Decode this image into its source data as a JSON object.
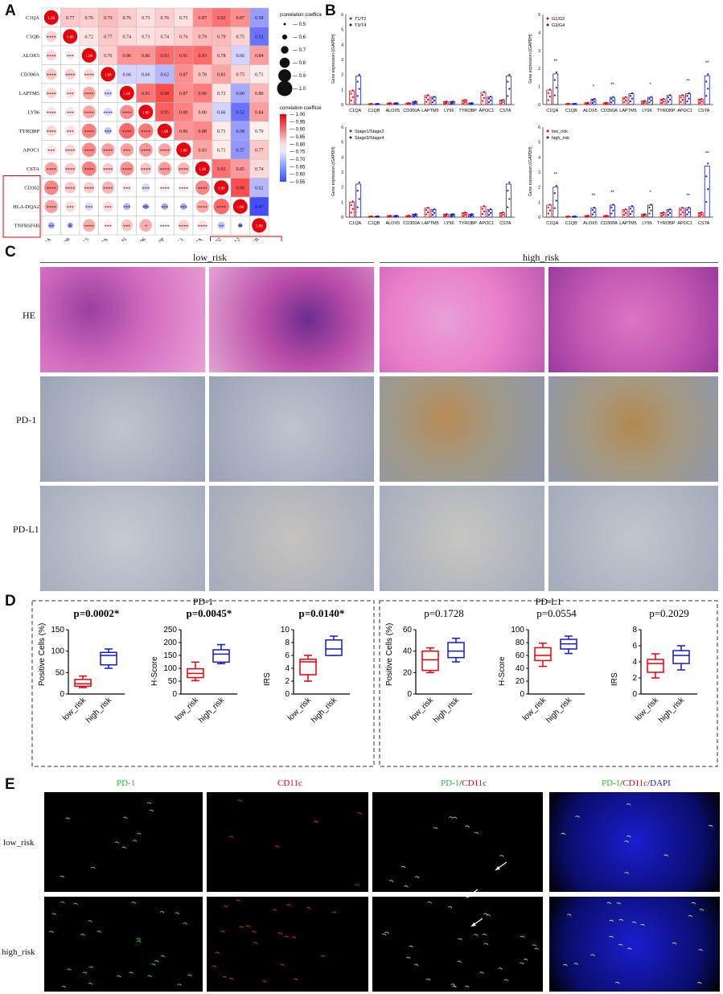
{
  "panels": {
    "A": "A",
    "B": "B",
    "C": "C",
    "D": "D",
    "E": "E"
  },
  "panelA": {
    "genes": [
      "C1QA",
      "C1QB",
      "ALOX5",
      "CD300A",
      "LAPTM5",
      "LY96",
      "TYROBP",
      "APOC1",
      "CSTA",
      "CD302",
      "HLA-DQA2",
      "TNFRSF6B"
    ],
    "matrix": [
      [
        "1.00",
        "0.77",
        "0.76",
        "0.79",
        "0.76",
        "0.73",
        "0.76",
        "0.73",
        "0.87",
        "0.92",
        "0.87",
        "0.58"
      ],
      [
        "****",
        "1.00",
        "0.72",
        "0.77",
        "0.74",
        "0.73",
        "0.74",
        "0.76",
        "0.79",
        "0.79",
        "0.75",
        "0.52"
      ],
      [
        "****",
        "***",
        "1.00",
        "0.76",
        "0.86",
        "0.86",
        "0.93",
        "0.91",
        "0.93",
        "0.78",
        "0.66",
        "0.84"
      ],
      [
        "****",
        "****",
        "****",
        "1.00",
        "0.66",
        "0.66",
        "0.62",
        "0.87",
        "0.78",
        "0.83",
        "0.75",
        "0.71"
      ],
      [
        "****",
        "***",
        "****",
        "***",
        "1.00",
        "0.91",
        "0.98",
        "0.87",
        "0.90",
        "0.72",
        "0.60",
        "0.80"
      ],
      [
        "****",
        "***",
        "****",
        "****",
        "****",
        "1.00",
        "0.95",
        "0.89",
        "0.80",
        "0.66",
        "0.52",
        "0.84"
      ],
      [
        "****",
        "***",
        "****",
        "***",
        "****",
        "****",
        "1.00",
        "0.86",
        "0.88",
        "0.71",
        "0.58",
        "0.70"
      ],
      [
        "***",
        "****",
        "****",
        "****",
        "***",
        "****",
        "****",
        "1.00",
        "0.83",
        "0.71",
        "0.57",
        "0.77"
      ],
      [
        "****",
        "****",
        "****",
        "****",
        "****",
        "****",
        "****",
        "****",
        "1.00",
        "0.92",
        "0.85",
        "0.74"
      ],
      [
        "****",
        "****",
        "****",
        "****",
        "***",
        "***",
        "****",
        "****",
        "****",
        "1.00",
        "0.98",
        "0.62"
      ],
      [
        "****",
        "***",
        "***",
        "***",
        "***",
        "***",
        "***",
        "***",
        "****",
        "****",
        "1.00",
        "0.47"
      ],
      [
        "**",
        "*",
        "****",
        "***",
        "***",
        "*",
        "****",
        "****",
        "****",
        "**",
        "**",
        "1.00"
      ]
    ],
    "size_legend": {
      "title": "|correlation coefficient|",
      "ticks": [
        "0.5",
        "0.6",
        "0.7",
        "0.8",
        "0.9",
        "1.0"
      ]
    },
    "color_legend": {
      "title": "correlation coefficient",
      "ticks": [
        "1.00",
        "0.95",
        "0.90",
        "0.85",
        "0.80",
        "0.75",
        "0.70",
        "0.65",
        "0.60",
        "0.55"
      ]
    },
    "colors": {
      "pos": "#e8000b",
      "neg": "#1c3fff",
      "box": "#e8000b"
    }
  },
  "panelB": {
    "ylabel": "Gene expression (/GAPDH)",
    "categories": [
      "C1QA",
      "C1QB",
      "ALOX5",
      "CD300A",
      "LAPTM5",
      "LY96",
      "TYROBP",
      "APOC1",
      "CSTA"
    ],
    "plots": [
      {
        "legend": [
          "T1/T2",
          "T3/T4"
        ],
        "ymax": 6,
        "yticks": [
          "0",
          "1",
          "2",
          "3",
          "4",
          "5",
          "6"
        ],
        "red": [
          0.9,
          0.05,
          0.1,
          0.1,
          0.6,
          0.2,
          0.3,
          0.8,
          0.3
        ],
        "blue": [
          1.9,
          0.05,
          0.1,
          0.2,
          0.5,
          0.2,
          0.1,
          0.5,
          1.9
        ],
        "stars": [
          "",
          "",
          "",
          "",
          "",
          "",
          "",
          "",
          ""
        ]
      },
      {
        "legend": [
          "G1/G2",
          "G3/G4"
        ],
        "ymax": 5,
        "yticks": [
          "0",
          "1",
          "2",
          "3",
          "4",
          "5"
        ],
        "red": [
          0.8,
          0.05,
          0.1,
          0.1,
          0.4,
          0.2,
          0.3,
          0.5,
          0.3
        ],
        "blue": [
          1.7,
          0.05,
          0.3,
          0.4,
          0.6,
          0.4,
          0.5,
          0.6,
          1.6
        ],
        "stars": [
          "**",
          "",
          "*",
          "**",
          "",
          "*",
          "",
          "**",
          "**"
        ]
      },
      {
        "legend": [
          "Stage1/Stage2",
          "Stage3/Stage4"
        ],
        "ymax": 6,
        "yticks": [
          "0",
          "1",
          "2",
          "3",
          "4",
          "5",
          "6"
        ],
        "red": [
          1.0,
          0.05,
          0.1,
          0.1,
          0.6,
          0.2,
          0.3,
          0.7,
          0.3
        ],
        "blue": [
          2.2,
          0.05,
          0.1,
          0.2,
          0.5,
          0.2,
          0.2,
          0.5,
          2.2
        ],
        "stars": [
          "",
          "",
          "",
          "",
          "",
          "",
          "",
          "",
          ""
        ]
      },
      {
        "legend": [
          "low_risk",
          "high_risk"
        ],
        "ymax": 6,
        "yticks": [
          "0",
          "1",
          "2",
          "3",
          "4",
          "5",
          "6"
        ],
        "red": [
          0.8,
          0.05,
          0.1,
          0.1,
          0.5,
          0.2,
          0.3,
          0.6,
          0.3
        ],
        "blue": [
          2.0,
          0.05,
          0.6,
          0.8,
          0.7,
          0.8,
          0.5,
          0.6,
          3.4
        ],
        "stars": [
          "**",
          "",
          "**",
          "**",
          "",
          "*",
          "",
          "**",
          "**"
        ]
      }
    ]
  },
  "panelC": {
    "groups": [
      "low_risk",
      "high_risk"
    ],
    "rows": [
      "HE",
      "PD-1",
      "PD-L1"
    ]
  },
  "panelD": {
    "groups": [
      {
        "title": "PD-1",
        "plots": [
          {
            "p": "p=0.0002*",
            "bold": true,
            "ylabel": "Positive Cells (%)",
            "ymax": 150,
            "yticks": [
              "0",
              "50",
              "100",
              "150"
            ],
            "low": {
              "min": 15,
              "q1": 18,
              "med": 24,
              "q3": 34,
              "max": 42
            },
            "high": {
              "min": 60,
              "q1": 68,
              "med": 90,
              "q3": 97,
              "max": 105
            }
          },
          {
            "p": "p=0.0045*",
            "bold": true,
            "ylabel": "H-Score",
            "ymax": 250,
            "yticks": [
              "0",
              "50",
              "100",
              "150",
              "200",
              "250"
            ],
            "low": {
              "min": 52,
              "q1": 64,
              "med": 80,
              "q3": 98,
              "max": 124
            },
            "high": {
              "min": 118,
              "q1": 124,
              "med": 155,
              "q3": 172,
              "max": 192
            }
          },
          {
            "p": "p=0.0140*",
            "bold": true,
            "ylabel": "IRS",
            "ymax": 10,
            "yticks": [
              "0",
              "2",
              "4",
              "6",
              "8",
              "10"
            ],
            "low": {
              "min": 2,
              "q1": 3,
              "med": 5,
              "q3": 5.4,
              "max": 6
            },
            "high": {
              "min": 6,
              "q1": 6,
              "med": 7,
              "q3": 8.4,
              "max": 9
            }
          }
        ]
      },
      {
        "title": "PD-L1",
        "plots": [
          {
            "p": "p=0.1728",
            "bold": false,
            "ylabel": "Positive Cells (%)",
            "ymax": 60,
            "yticks": [
              "0",
              "20",
              "40",
              "60"
            ],
            "low": {
              "min": 20,
              "q1": 22,
              "med": 32,
              "q3": 40,
              "max": 43
            },
            "high": {
              "min": 30,
              "q1": 34,
              "med": 40,
              "q3": 48,
              "max": 52
            }
          },
          {
            "p": "p=0.0554",
            "bold": false,
            "ylabel": "H-Score",
            "ymax": 100,
            "yticks": [
              "0",
              "20",
              "40",
              "60",
              "80",
              "100"
            ],
            "low": {
              "min": 43,
              "q1": 52,
              "med": 60,
              "q3": 72,
              "max": 79
            },
            "high": {
              "min": 63,
              "q1": 70,
              "med": 78,
              "q3": 85,
              "max": 90
            }
          },
          {
            "p": "p=0.2029",
            "bold": false,
            "ylabel": "IRS",
            "ymax": 8,
            "yticks": [
              "0",
              "2",
              "4",
              "6",
              "8"
            ],
            "low": {
              "min": 2,
              "q1": 2.7,
              "med": 3.8,
              "q3": 4.3,
              "max": 5
            },
            "high": {
              "min": 3,
              "q1": 3.8,
              "med": 4.8,
              "q3": 5.4,
              "max": 6
            }
          }
        ]
      }
    ],
    "xlabels": [
      "low_risk",
      "high_risk"
    ],
    "colors": {
      "low": "#e8000b",
      "high": "#1417c8"
    }
  },
  "panelE": {
    "rows": [
      "low_risk",
      "high_risk"
    ],
    "columns": [
      {
        "parts": [
          {
            "t": "PD-1",
            "c": "#22c322"
          }
        ]
      },
      {
        "parts": [
          {
            "t": "CD11c",
            "c": "#e8000b"
          }
        ]
      },
      {
        "parts": [
          {
            "t": "PD-1",
            "c": "#22c322"
          },
          {
            "t": "/",
            "c": "#111111"
          },
          {
            "t": "CD11c",
            "c": "#e8000b"
          }
        ]
      },
      {
        "parts": [
          {
            "t": "PD-1",
            "c": "#22c322"
          },
          {
            "t": "/",
            "c": "#111111"
          },
          {
            "t": "CD11c",
            "c": "#e8000b"
          },
          {
            "t": "/",
            "c": "#111111"
          },
          {
            "t": "DAPI",
            "c": "#1417c8"
          }
        ]
      }
    ]
  }
}
